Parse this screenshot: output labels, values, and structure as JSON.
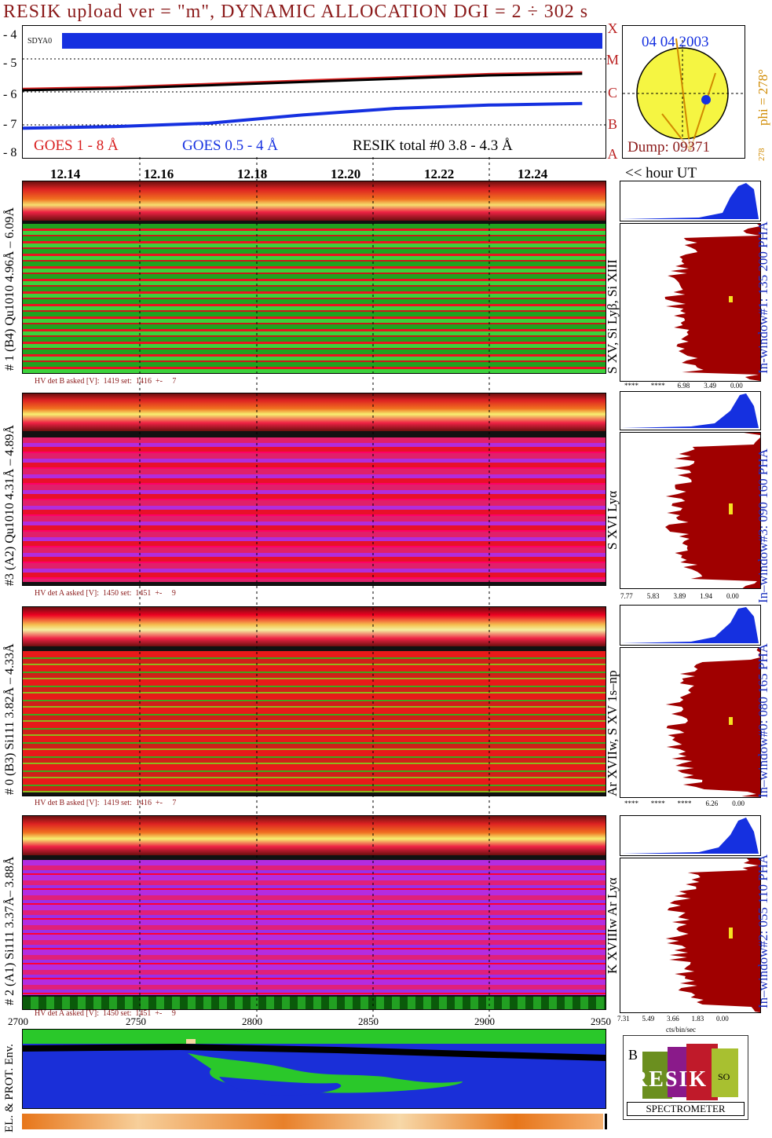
{
  "title": "RESIK upload ver = \"m\", DYNAMIC ALLOCATION  DGI =   2 ÷ 302 s",
  "goes": {
    "yticks": [
      "- 4",
      "- 5",
      "- 6",
      "- 7",
      "- 8"
    ],
    "flare_classes": [
      "X",
      "M",
      "C",
      "B",
      "A"
    ],
    "tag": "SDYA0",
    "legend_goes18": "GOES 1 - 8 Å",
    "legend_goes054": "GOES 0.5 - 4 Å",
    "legend_resik": "RESIK total #0  3.8 - 4.3 Å"
  },
  "sun": {
    "date": "04 04 2003",
    "dump": "Dump: 09371",
    "phi": "phi = 278°",
    "phi_sub": "278",
    "phi_small": "278"
  },
  "hours": [
    "12.14",
    "12.16",
    "12.18",
    "12.20",
    "12.22",
    "12.24"
  ],
  "hour_axis_label": "<< hour UT",
  "panels": [
    {
      "label": "# 1 (B4) Qu1010 4.96Å – 6.09Å",
      "lines": "S XV, Si Lyβ, Si XIII",
      "window": "In-window#1:  135 200 PHA",
      "hv": "HV det B asked [V]:  1419 set:  1416  +-     7",
      "axis": "****       ****       6.98        3.49        0.00"
    },
    {
      "label": "#3 (A2) Qu1010  4.31Å – 4.89Å",
      "lines": "S XVI Lyα",
      "window": "In–window#3:  090 160 PHA",
      "hv": "HV det A asked [V]:  1450 set:  1451  +-     9",
      "axis": "7.77        5.83        3.89        1.94        0.00"
    },
    {
      "label": "# 0 (B3) Si111  3.82Å – 4.33Å",
      "lines": "Ar XVIIw,  S XV 1s–np",
      "window": "In–window#0:  080 165 PHA",
      "hv": "HV det B asked [V]:  1419 set:  1416  +-     7",
      "axis": "****       ****       ****        6.26        0.00"
    },
    {
      "label": "# 2 (A1) Si111  3.37Å– 3.88Å",
      "lines": "K XVIIIw  Ar Lyα",
      "window": "In–window#2:  055 110 PHA",
      "hv": "HV det A asked [V]:  1450 set:  1451  +-     9",
      "axis": "7.31       5.49       3.66       1.83       0.00"
    }
  ],
  "bottom": {
    "xticks": [
      "2700",
      "2750",
      "2800",
      "2850",
      "2900",
      "2950"
    ],
    "env_label": "EL. & PROT. Env.",
    "axis_unit": "cts/bin/sec"
  },
  "logo": {
    "text": "RESIK",
    "subtitle": "SPECTROMETER",
    "corner_letters": "BAG  SOLAR"
  },
  "colors": {
    "goes18": "#d81e1e",
    "goes054": "#1530e0",
    "resik": "#000000",
    "title": "#8b1a1a",
    "window_label": "#1a2fbf",
    "histogram": "#a00000"
  },
  "chart_data": [
    {
      "type": "line",
      "title": "RESIK upload ver = \"m\", DYNAMIC ALLOCATION  DGI =   2 ÷ 302 s",
      "xlabel": "hour UT",
      "ylabel": "",
      "x": [
        12.13,
        12.15,
        12.17,
        12.19,
        12.21,
        12.23,
        12.25
      ],
      "ylim": [
        -8,
        -4
      ],
      "series": [
        {
          "name": "GOES 1 - 8 Å",
          "values": [
            -5.9,
            -5.85,
            -5.75,
            -5.65,
            -5.55,
            -5.45,
            -5.4
          ]
        },
        {
          "name": "GOES 0.5 - 4 Å",
          "values": [
            -7.1,
            -7.05,
            -6.95,
            -6.7,
            -6.5,
            -6.4,
            -6.35
          ]
        },
        {
          "name": "RESIK total #0  3.8 - 4.3 Å",
          "values": [
            -5.95,
            -5.9,
            -5.8,
            -5.7,
            -5.6,
            -5.5,
            -5.45
          ]
        }
      ]
    }
  ]
}
